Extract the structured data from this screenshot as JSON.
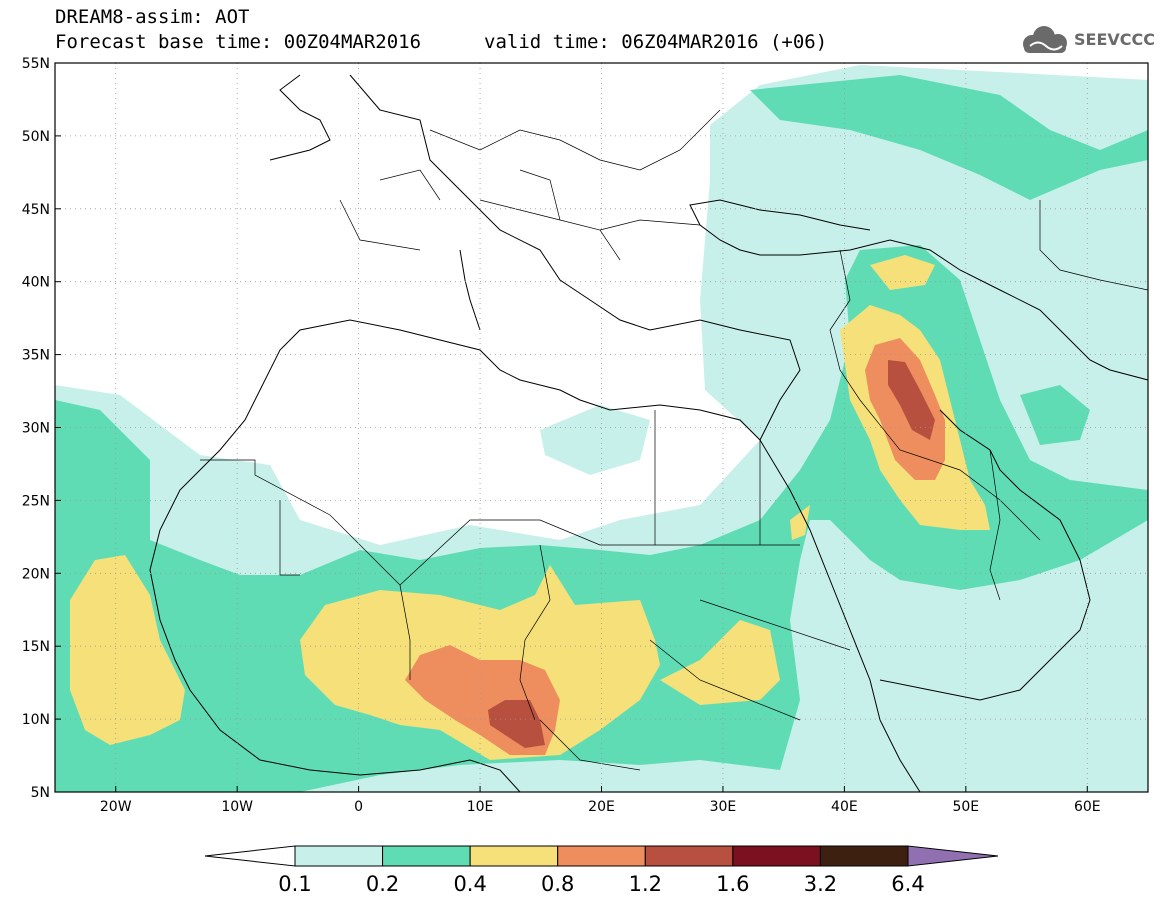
{
  "header": {
    "title": "DREAM8-assim: AOT",
    "forecast_base": "Forecast base time: 00Z04MAR2016",
    "valid_time": "valid time: 06Z04MAR2016 (+06)"
  },
  "logo": {
    "text": "SEEVCCC",
    "icon": "cloud-icon"
  },
  "map": {
    "lat_labels": [
      "55N",
      "50N",
      "45N",
      "40N",
      "35N",
      "30N",
      "25N",
      "20N",
      "15N",
      "10N",
      "5N"
    ],
    "lon_labels": [
      "20W",
      "10W",
      "0",
      "10E",
      "20E",
      "30E",
      "40E",
      "50E",
      "60E"
    ],
    "lon_range": [
      -25,
      65
    ],
    "lat_range": [
      5,
      55
    ]
  },
  "legend": {
    "labels": [
      "0.1",
      "0.2",
      "0.4",
      "0.8",
      "1.2",
      "1.6",
      "3.2",
      "6.4"
    ],
    "colors": [
      "#c8f0ea",
      "#5fdcb4",
      "#f5e07a",
      "#ee8e5e",
      "#b85040",
      "#7a1020",
      "#3e2010",
      "#9070b0"
    ],
    "under_color": "#ffffff"
  }
}
